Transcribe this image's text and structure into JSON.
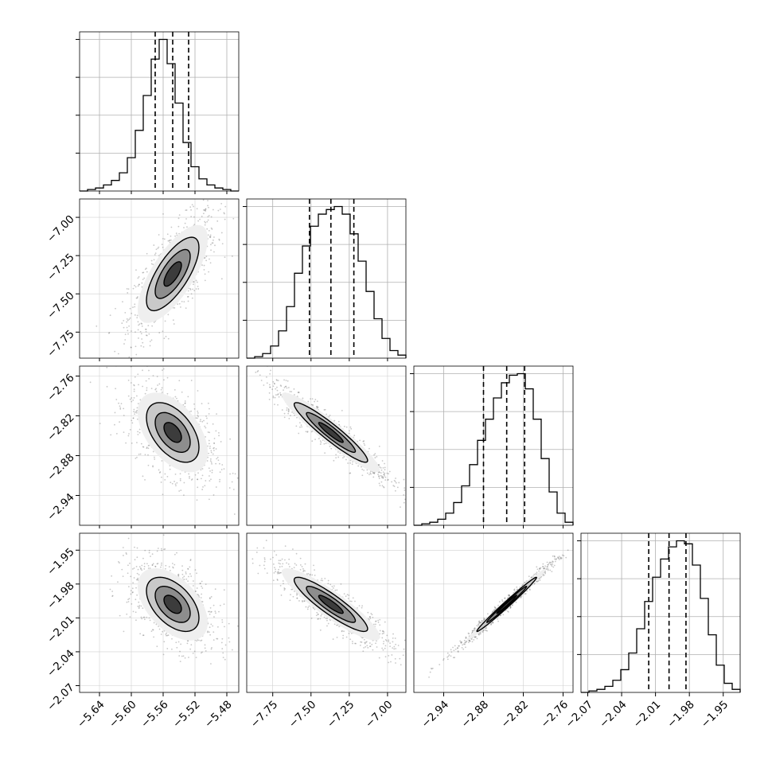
{
  "chart_data": {
    "type": "scatter",
    "title": "",
    "grid": true,
    "variables": [
      {
        "name": "",
        "range": [
          -5.665,
          -5.465
        ],
        "ticks": [
          -5.64,
          -5.6,
          -5.56,
          -5.52,
          -5.48
        ],
        "tick_labels": [
          "−5.64",
          "−5.60",
          "−5.56",
          "−5.52",
          "−5.48"
        ],
        "quantiles": [
          -5.57,
          -5.548,
          -5.528
        ]
      },
      {
        "name": "",
        "range": [
          -7.92,
          -6.88
        ],
        "ticks": [
          -7.75,
          -7.5,
          -7.25,
          -7.0
        ],
        "tick_labels": [
          "−7.75",
          "−7.50",
          "−7.25",
          "−7.00"
        ],
        "quantiles": [
          -7.51,
          -7.37,
          -7.22
        ]
      },
      {
        "name": "",
        "range": [
          -2.985,
          -2.745
        ],
        "ticks": [
          -2.94,
          -2.88,
          -2.82,
          -2.76
        ],
        "tick_labels": [
          "−2.94",
          "−2.88",
          "−2.82",
          "−2.76"
        ],
        "quantiles": [
          -2.88,
          -2.845,
          -2.818
        ]
      },
      {
        "name": "",
        "range": [
          -2.076,
          -1.935
        ],
        "ticks": [
          -2.07,
          -2.04,
          -2.01,
          -1.98,
          -1.95
        ],
        "tick_labels": [
          "−2.07",
          "−2.04",
          "−2.01",
          "−1.98",
          "−1.95"
        ],
        "quantiles": [
          -2.016,
          -1.998,
          -1.983
        ]
      }
    ],
    "histograms": [
      [
        0,
        1,
        2,
        4,
        7,
        12,
        22,
        40,
        63,
        87,
        100,
        84,
        58,
        32,
        16,
        8,
        4,
        2,
        1,
        0
      ],
      [
        0,
        1,
        3,
        8,
        18,
        34,
        56,
        74,
        87,
        95,
        98,
        100,
        95,
        82,
        64,
        44,
        26,
        13,
        5,
        2
      ],
      [
        0,
        1,
        2,
        4,
        8,
        15,
        26,
        40,
        56,
        70,
        84,
        94,
        99,
        100,
        90,
        70,
        44,
        22,
        8,
        2
      ],
      [
        0,
        1,
        2,
        4,
        8,
        15,
        26,
        42,
        60,
        76,
        88,
        96,
        100,
        98,
        84,
        62,
        38,
        18,
        6,
        2
      ]
    ],
    "pairs": [
      {
        "x": 0,
        "y": 1,
        "center": [
          -5.548,
          -7.37
        ],
        "sigma": [
          0.022,
          0.16
        ],
        "rho": 0.72
      },
      {
        "x": 0,
        "y": 2,
        "center": [
          -5.548,
          -2.845
        ],
        "sigma": [
          0.022,
          0.03
        ],
        "rho": -0.5
      },
      {
        "x": 1,
        "y": 2,
        "center": [
          -7.37,
          -2.845
        ],
        "sigma": [
          0.16,
          0.03
        ],
        "rho": -0.94
      },
      {
        "x": 0,
        "y": 3,
        "center": [
          -5.548,
          -1.998
        ],
        "sigma": [
          0.022,
          0.016
        ],
        "rho": -0.5
      },
      {
        "x": 1,
        "y": 3,
        "center": [
          -7.37,
          -1.998
        ],
        "sigma": [
          0.16,
          0.016
        ],
        "rho": -0.9
      },
      {
        "x": 2,
        "y": 3,
        "center": [
          -2.845,
          -1.998
        ],
        "sigma": [
          0.03,
          0.016
        ],
        "rho": 0.99
      }
    ],
    "contour_levels_sigma": [
      0.5,
      1.0,
      1.5,
      2.0
    ]
  }
}
